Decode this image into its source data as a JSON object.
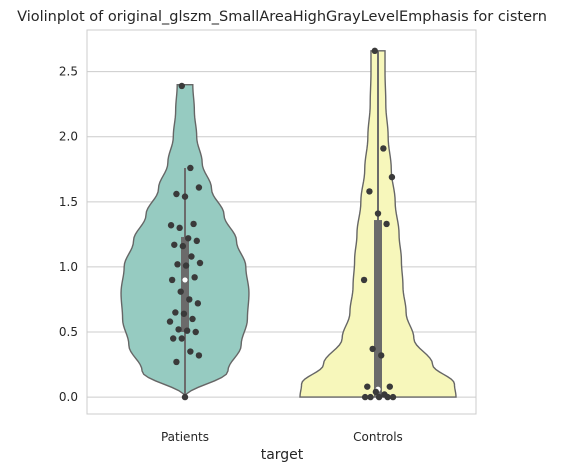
{
  "chart_data": {
    "type": "violin",
    "title": "Violinplot of original_glszm_SmallAreaHighGrayLevelEmphasis for cistern",
    "xlabel": "target",
    "ylabel": "",
    "categories": [
      "Patients",
      "Controls"
    ],
    "yticks": [
      "0.0",
      "0.5",
      "1.0",
      "1.5",
      "2.0",
      "2.5"
    ],
    "ylim": [
      -0.13,
      2.82
    ],
    "grid": "y",
    "colors": {
      "Patients": "#96cbc1",
      "Controls": "#f7f7bb",
      "outline": "#666666",
      "points": "#3a3a3a",
      "axes_frame": "#cccccc",
      "grid": "#cccccc"
    },
    "series": [
      {
        "category": "Patients",
        "points": [
          2.39,
          1.76,
          1.61,
          1.56,
          1.54,
          1.33,
          1.32,
          1.3,
          1.22,
          1.2,
          1.17,
          1.16,
          1.08,
          1.03,
          1.02,
          1.01,
          0.92,
          0.9,
          0.81,
          0.75,
          0.72,
          0.65,
          0.64,
          0.6,
          0.58,
          0.52,
          0.51,
          0.5,
          0.45,
          0.45,
          0.35,
          0.32,
          0.27,
          0.0
        ],
        "box": {
          "q1": 0.5,
          "median": 0.9,
          "q3": 1.23,
          "whisker_low": 0.0,
          "whisker_high": 1.76
        },
        "density": [
          [
            0.0,
            0.0
          ],
          [
            0.2,
            0.55
          ],
          [
            0.4,
            0.72
          ],
          [
            0.6,
            0.8
          ],
          [
            0.8,
            0.82
          ],
          [
            1.0,
            0.78
          ],
          [
            1.2,
            0.66
          ],
          [
            1.4,
            0.5
          ],
          [
            1.6,
            0.34
          ],
          [
            1.8,
            0.22
          ],
          [
            2.0,
            0.15
          ],
          [
            2.2,
            0.12
          ],
          [
            2.4,
            0.1
          ]
        ]
      },
      {
        "category": "Controls",
        "points": [
          2.66,
          1.91,
          1.69,
          1.58,
          1.41,
          1.33,
          0.9,
          0.37,
          0.32,
          0.08,
          0.08,
          0.04,
          0.02,
          0.0,
          0.0,
          0.0,
          0.0,
          0.0
        ],
        "box": {
          "q1": 0.0,
          "median": 0.06,
          "q3": 1.36,
          "whisker_low": 0.0,
          "whisker_high": 2.66
        },
        "density": [
          [
            0.0,
            1.0
          ],
          [
            0.1,
            0.98
          ],
          [
            0.25,
            0.7
          ],
          [
            0.45,
            0.46
          ],
          [
            0.65,
            0.36
          ],
          [
            0.85,
            0.32
          ],
          [
            1.05,
            0.3
          ],
          [
            1.25,
            0.27
          ],
          [
            1.5,
            0.22
          ],
          [
            1.75,
            0.17
          ],
          [
            2.0,
            0.13
          ],
          [
            2.25,
            0.1
          ],
          [
            2.5,
            0.09
          ],
          [
            2.66,
            0.09
          ]
        ]
      }
    ]
  }
}
